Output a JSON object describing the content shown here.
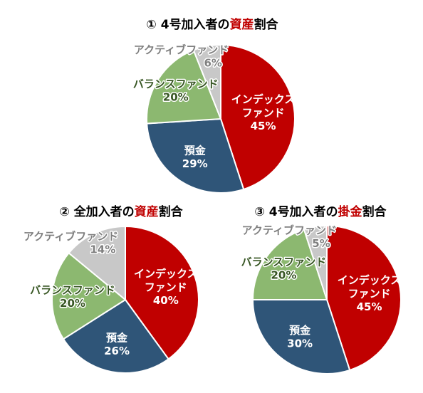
{
  "chart_data": [
    {
      "type": "pie",
      "title": [
        "① 4号加入者の",
        "資産",
        "割合"
      ],
      "title_highlight_color": "#c00000",
      "categories": [
        "インデックス\nファンド",
        "預金",
        "バランスファンド",
        "アクティブファンド"
      ],
      "values": [
        45,
        29,
        20,
        6
      ],
      "value_labels": [
        "45%",
        "29%",
        "20%",
        "6%"
      ],
      "colors": [
        "#c00000",
        "#2f5578",
        "#8cb870",
        "#c8c8c8"
      ],
      "label_colors": [
        "#ffffff",
        "#ffffff",
        "#375623",
        "#7f7f7f"
      ]
    },
    {
      "type": "pie",
      "title": [
        "② 全加入者の",
        "資産",
        "割合"
      ],
      "title_highlight_color": "#c00000",
      "categories": [
        "インデックス\nファンド",
        "預金",
        "バランスファンド",
        "アクティブファンド"
      ],
      "values": [
        40,
        26,
        20,
        14
      ],
      "value_labels": [
        "40%",
        "26%",
        "20%",
        "14%"
      ],
      "colors": [
        "#c00000",
        "#2f5578",
        "#8cb870",
        "#c8c8c8"
      ],
      "label_colors": [
        "#ffffff",
        "#ffffff",
        "#375623",
        "#7f7f7f"
      ]
    },
    {
      "type": "pie",
      "title": [
        "③ 4号加入者の",
        "掛金",
        "割合"
      ],
      "title_highlight_color": "#c00000",
      "categories": [
        "インデックス\nファンド",
        "預金",
        "バランスファンド",
        "アクティブファンド"
      ],
      "values": [
        45,
        30,
        20,
        5
      ],
      "value_labels": [
        "45%",
        "30%",
        "20%",
        "5%"
      ],
      "colors": [
        "#c00000",
        "#2f5578",
        "#8cb870",
        "#c8c8c8"
      ],
      "label_colors": [
        "#ffffff",
        "#ffffff",
        "#375623",
        "#7f7f7f"
      ]
    }
  ]
}
